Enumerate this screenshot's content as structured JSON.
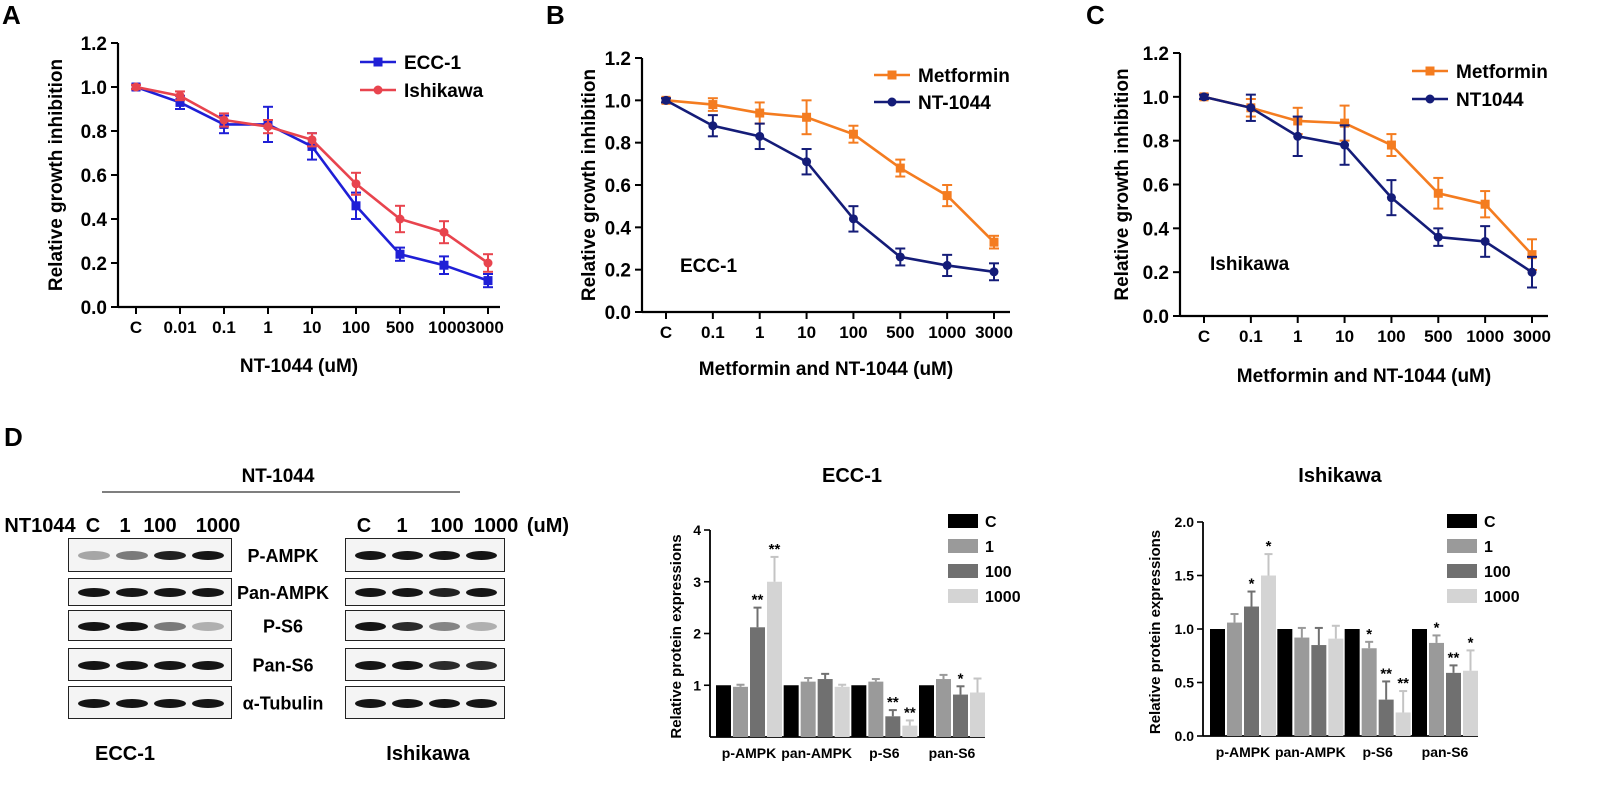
{
  "panel_letters": {
    "a": "A",
    "b": "B",
    "c": "C",
    "d": "D"
  },
  "chart_data": [
    {
      "id": "A",
      "type": "line",
      "categories": [
        "C",
        "0.01",
        "0.1",
        "1",
        "10",
        "100",
        "500",
        "1000",
        "3000"
      ],
      "category_labels": [
        "C",
        "0.01",
        "0.1",
        "1",
        "10",
        "100",
        "500",
        "10003000"
      ],
      "xlabel": "NT-1044 (uM)",
      "ylabel": "Relative growth inhibition",
      "ylim": [
        0,
        1.2
      ],
      "yticks": [
        "0.0",
        "0.2",
        "0.4",
        "0.6",
        "0.8",
        "1.0",
        "1.2"
      ],
      "legend_position": "top-right",
      "series": [
        {
          "name": "ECC-1",
          "color": "#1f1fd6",
          "marker": "square",
          "values": [
            1.0,
            0.93,
            0.83,
            0.83,
            0.73,
            0.46,
            0.24,
            0.19,
            0.12
          ],
          "errors": [
            0.01,
            0.03,
            0.04,
            0.08,
            0.06,
            0.06,
            0.03,
            0.04,
            0.03
          ]
        },
        {
          "name": "Ishikawa",
          "color": "#e8444e",
          "marker": "circle",
          "values": [
            1.0,
            0.96,
            0.85,
            0.82,
            0.76,
            0.56,
            0.4,
            0.34,
            0.2
          ],
          "errors": [
            0.01,
            0.02,
            0.03,
            0.03,
            0.03,
            0.05,
            0.06,
            0.05,
            0.04
          ]
        }
      ]
    },
    {
      "id": "B",
      "type": "line",
      "categories": [
        "C",
        "0.1",
        "1",
        "10",
        "100",
        "500",
        "1000",
        "3000"
      ],
      "xlabel": "Metformin and NT-1044 (uM)",
      "ylabel": "Relative growth inhibition",
      "ylim": [
        0,
        1.2
      ],
      "yticks": [
        "0.0",
        "0.2",
        "0.4",
        "0.6",
        "0.8",
        "1.0",
        "1.2"
      ],
      "annotation": "ECC-1",
      "legend_position": "top-right",
      "series": [
        {
          "name": "Metformin",
          "color": "#f47c20",
          "marker": "square",
          "values": [
            1.0,
            0.98,
            0.94,
            0.92,
            0.84,
            0.68,
            0.55,
            0.33
          ],
          "errors": [
            0.01,
            0.03,
            0.05,
            0.08,
            0.04,
            0.04,
            0.05,
            0.03
          ]
        },
        {
          "name": "NT-1044",
          "color": "#141c78",
          "marker": "circle",
          "values": [
            1.0,
            0.88,
            0.83,
            0.71,
            0.44,
            0.26,
            0.22,
            0.19
          ],
          "errors": [
            0.01,
            0.05,
            0.06,
            0.06,
            0.06,
            0.04,
            0.05,
            0.04
          ]
        }
      ]
    },
    {
      "id": "C",
      "type": "line",
      "categories": [
        "C",
        "0.1",
        "1",
        "10",
        "100",
        "500",
        "1000",
        "3000"
      ],
      "xlabel": "Metformin and NT-1044 (uM)",
      "ylabel": "Relative growth inhibition",
      "ylim": [
        0,
        1.2
      ],
      "yticks": [
        "0.0",
        "0.2",
        "0.4",
        "0.6",
        "0.8",
        "1.0",
        "1.2"
      ],
      "annotation": "Ishikawa",
      "legend_position": "top-right",
      "series": [
        {
          "name": "Metformin",
          "color": "#f47c20",
          "marker": "square",
          "values": [
            1.0,
            0.95,
            0.89,
            0.88,
            0.78,
            0.56,
            0.51,
            0.28
          ],
          "errors": [
            0.01,
            0.04,
            0.06,
            0.08,
            0.05,
            0.07,
            0.06,
            0.07
          ]
        },
        {
          "name": "NT1044",
          "color": "#141c78",
          "marker": "circle",
          "values": [
            1.0,
            0.95,
            0.82,
            0.78,
            0.54,
            0.36,
            0.34,
            0.2
          ],
          "errors": [
            0.01,
            0.06,
            0.09,
            0.09,
            0.08,
            0.04,
            0.07,
            0.07
          ]
        }
      ]
    },
    {
      "id": "D-ECC-1",
      "type": "bar",
      "title": "ECC-1",
      "ylabel": "Relative protein expressions",
      "ylim": [
        0,
        4
      ],
      "yticks": [
        "1",
        "2",
        "3",
        "4"
      ],
      "categories": [
        "p-AMPK",
        "pan-AMPK",
        "p-S6",
        "pan-S6"
      ],
      "series": [
        {
          "name": "C",
          "color": "#000000",
          "values": [
            1.0,
            1.0,
            1.0,
            1.0
          ],
          "errors": [
            0,
            0,
            0,
            0
          ],
          "marks": [
            "",
            "",
            "",
            ""
          ]
        },
        {
          "name": "1",
          "color": "#9a9a9a",
          "values": [
            0.97,
            1.07,
            1.07,
            1.12
          ],
          "errors": [
            0.04,
            0.07,
            0.05,
            0.08
          ],
          "marks": [
            "",
            "",
            "",
            ""
          ]
        },
        {
          "name": "100",
          "color": "#707070",
          "values": [
            2.12,
            1.12,
            0.4,
            0.82
          ],
          "errors": [
            0.38,
            0.1,
            0.12,
            0.16
          ],
          "marks": [
            "**",
            "",
            "**",
            "*"
          ]
        },
        {
          "name": "1000",
          "color": "#d4d4d4",
          "values": [
            3.0,
            0.97,
            0.22,
            0.86
          ],
          "errors": [
            0.48,
            0.04,
            0.1,
            0.27
          ],
          "marks": [
            "**",
            "",
            "**",
            ""
          ]
        }
      ]
    },
    {
      "id": "D-Ishikawa",
      "type": "bar",
      "title": "Ishikawa",
      "ylabel": "Relative protein expressions",
      "ylim": [
        0,
        2.0
      ],
      "yticks": [
        "0.0",
        "0.5",
        "1.0",
        "1.5",
        "2.0"
      ],
      "categories": [
        "p-AMPK",
        "pan-AMPK",
        "p-S6",
        "pan-S6"
      ],
      "series": [
        {
          "name": "C",
          "color": "#000000",
          "values": [
            1.0,
            1.0,
            1.0,
            1.0
          ],
          "errors": [
            0,
            0,
            0,
            0
          ],
          "marks": [
            "",
            "",
            "",
            ""
          ]
        },
        {
          "name": "1",
          "color": "#9a9a9a",
          "values": [
            1.06,
            0.92,
            0.82,
            0.87
          ],
          "errors": [
            0.08,
            0.09,
            0.06,
            0.07
          ],
          "marks": [
            "",
            "",
            "*",
            "*"
          ]
        },
        {
          "name": "100",
          "color": "#707070",
          "values": [
            1.21,
            0.85,
            0.34,
            0.59
          ],
          "errors": [
            0.14,
            0.16,
            0.17,
            0.07
          ],
          "marks": [
            "*",
            "",
            "**",
            "**"
          ]
        },
        {
          "name": "1000",
          "color": "#d4d4d4",
          "values": [
            1.5,
            0.91,
            0.22,
            0.61
          ],
          "errors": [
            0.2,
            0.12,
            0.2,
            0.19
          ],
          "marks": [
            "*",
            "",
            "**",
            "*"
          ]
        }
      ]
    }
  ],
  "western_blot": {
    "treatment": "NT-1044",
    "ecc1_header": [
      "NT1044",
      "C",
      "1",
      "100",
      "1000"
    ],
    "ishikawa_header": [
      "C",
      "1",
      "100",
      "1000",
      "(uM)"
    ],
    "proteins": [
      "P-AMPK",
      "Pan-AMPK",
      "P-S6",
      "Pan-S6",
      "α-Tubulin"
    ],
    "ecc1_label": "ECC-1",
    "ishikawa_label": "Ishikawa",
    "ecc1_intensity": [
      [
        0.35,
        0.55,
        0.95,
        1.0
      ],
      [
        1,
        1,
        1,
        1
      ],
      [
        1,
        1,
        0.55,
        0.3
      ],
      [
        1,
        1,
        1,
        1
      ],
      [
        1,
        1,
        1,
        1
      ]
    ],
    "ishikawa_intensity": [
      [
        1,
        1,
        1,
        1
      ],
      [
        1,
        1,
        0.95,
        1
      ],
      [
        1,
        0.9,
        0.5,
        0.3
      ],
      [
        1,
        1,
        0.9,
        0.9
      ],
      [
        1,
        1,
        1,
        1
      ]
    ]
  }
}
